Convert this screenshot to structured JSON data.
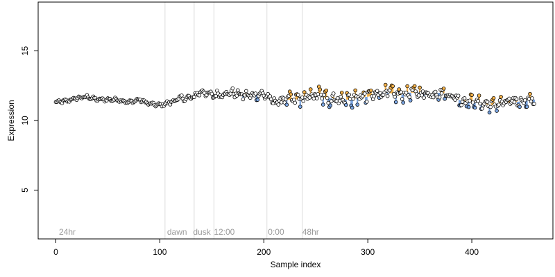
{
  "chart_data": {
    "type": "scatter",
    "xlabel": "Sample index",
    "ylabel": "Expression",
    "xlim": [
      -17,
      478
    ],
    "ylim": [
      1.5,
      18.5
    ],
    "x_ticks": [
      0,
      100,
      200,
      300,
      400
    ],
    "y_ticks": [
      5,
      10,
      15
    ],
    "grid": false,
    "vlines": [
      105,
      133,
      152,
      203,
      237
    ],
    "annotations": [
      {
        "x": 3,
        "y": 2,
        "text": "24hr"
      },
      {
        "x": 107,
        "y": 2,
        "text": "dawn"
      },
      {
        "x": 132,
        "y": 2,
        "text": "dusk"
      },
      {
        "x": 152,
        "y": 2,
        "text": "12:00"
      },
      {
        "x": 204,
        "y": 2,
        "text": "0:00"
      },
      {
        "x": 237,
        "y": 2,
        "text": "48hr"
      }
    ],
    "colors": {
      "point_edge": "#000000",
      "point_fill": "#ffffff",
      "above_trend": "#f5b24a",
      "below_trend": "#7aa4e0",
      "vline": "#dcdcdc",
      "annotation": "#9a9a9a"
    },
    "anchors": [
      [
        0,
        11.3
      ],
      [
        10,
        11.4
      ],
      [
        20,
        11.6
      ],
      [
        30,
        11.7
      ],
      [
        40,
        11.5
      ],
      [
        50,
        11.5
      ],
      [
        60,
        11.5
      ],
      [
        70,
        11.3
      ],
      [
        80,
        11.5
      ],
      [
        90,
        11.2
      ],
      [
        100,
        11.1
      ],
      [
        110,
        11.3
      ],
      [
        120,
        11.6
      ],
      [
        130,
        11.6
      ],
      [
        140,
        12.1
      ],
      [
        150,
        11.8
      ],
      [
        160,
        11.9
      ],
      [
        170,
        12.0
      ],
      [
        180,
        11.8
      ],
      [
        190,
        11.8
      ],
      [
        200,
        11.9
      ],
      [
        210,
        11.3
      ],
      [
        220,
        11.5
      ],
      [
        230,
        11.5
      ],
      [
        240,
        11.6
      ],
      [
        250,
        11.9
      ],
      [
        260,
        11.6
      ],
      [
        270,
        11.6
      ],
      [
        280,
        11.5
      ],
      [
        290,
        11.6
      ],
      [
        300,
        11.7
      ],
      [
        310,
        12.0
      ],
      [
        320,
        12.0
      ],
      [
        330,
        11.8
      ],
      [
        340,
        12.0
      ],
      [
        350,
        12.0
      ],
      [
        360,
        11.9
      ],
      [
        370,
        12.0
      ],
      [
        380,
        11.8
      ],
      [
        390,
        11.4
      ],
      [
        400,
        11.4
      ],
      [
        410,
        11.2
      ],
      [
        420,
        11.1
      ],
      [
        430,
        11.3
      ],
      [
        440,
        11.3
      ],
      [
        450,
        11.4
      ],
      [
        460,
        11.5
      ]
    ],
    "noise": [
      [
        0,
        0.12
      ],
      [
        100,
        0.12
      ],
      [
        130,
        0.22
      ],
      [
        210,
        0.35
      ],
      [
        240,
        0.55
      ],
      [
        300,
        0.6
      ],
      [
        340,
        0.5
      ],
      [
        380,
        0.4
      ],
      [
        420,
        0.45
      ],
      [
        460,
        0.4
      ]
    ],
    "n_points": 461
  }
}
